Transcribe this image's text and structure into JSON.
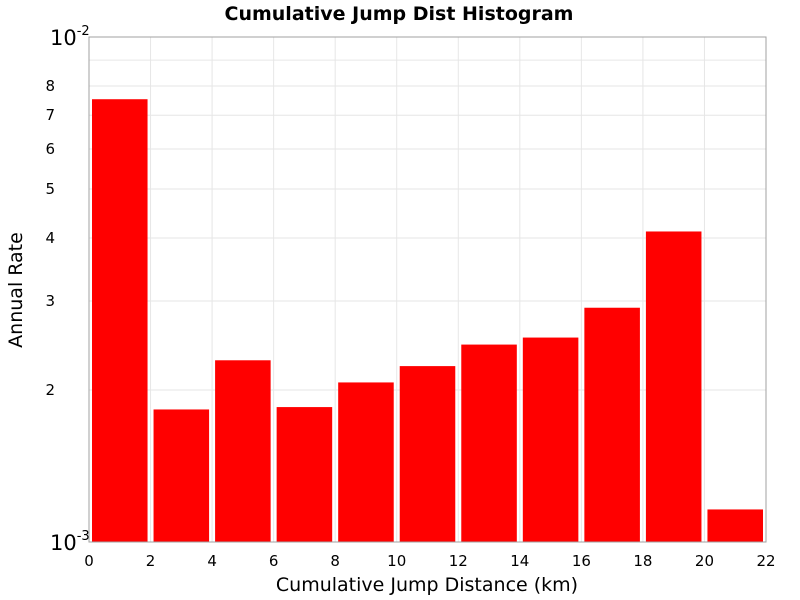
{
  "chart_data": {
    "type": "bar",
    "title": "Cumulative Jump Dist Histogram",
    "xlabel": "Cumulative Jump Distance (km)",
    "ylabel": "Annual Rate",
    "x_ticks": [
      "0",
      "2",
      "4",
      "6",
      "8",
      "10",
      "12",
      "14",
      "16",
      "18",
      "20",
      "22"
    ],
    "xlim": [
      0,
      22
    ],
    "y_scale": "log",
    "ylim": [
      0.001,
      0.01
    ],
    "y_decade_labels": [
      {
        "base": "10",
        "exp": "-3",
        "value": 0.001
      },
      {
        "base": "10",
        "exp": "-2",
        "value": 0.01
      }
    ],
    "y_minor_labels": [
      {
        "label": "2",
        "value": 0.002
      },
      {
        "label": "3",
        "value": 0.003
      },
      {
        "label": "4",
        "value": 0.004
      },
      {
        "label": "5",
        "value": 0.005
      },
      {
        "label": "6",
        "value": 0.006
      },
      {
        "label": "7",
        "value": 0.007
      },
      {
        "label": "8",
        "value": 0.008
      }
    ],
    "bin_width": 2,
    "bins": [
      {
        "x_start": 0,
        "x_end": 2,
        "value": 0.00753
      },
      {
        "x_start": 2,
        "x_end": 4,
        "value": 0.00183
      },
      {
        "x_start": 4,
        "x_end": 6,
        "value": 0.00229
      },
      {
        "x_start": 6,
        "x_end": 8,
        "value": 0.00185
      },
      {
        "x_start": 8,
        "x_end": 10,
        "value": 0.00207
      },
      {
        "x_start": 10,
        "x_end": 12,
        "value": 0.00223
      },
      {
        "x_start": 12,
        "x_end": 14,
        "value": 0.00246
      },
      {
        "x_start": 14,
        "x_end": 16,
        "value": 0.00254
      },
      {
        "x_start": 16,
        "x_end": 18,
        "value": 0.00291
      },
      {
        "x_start": 18,
        "x_end": 20,
        "value": 0.00412
      },
      {
        "x_start": 20,
        "x_end": 22,
        "value": 0.00116
      }
    ],
    "bar_color": "#ff0000",
    "grid": true,
    "legend": "none"
  }
}
